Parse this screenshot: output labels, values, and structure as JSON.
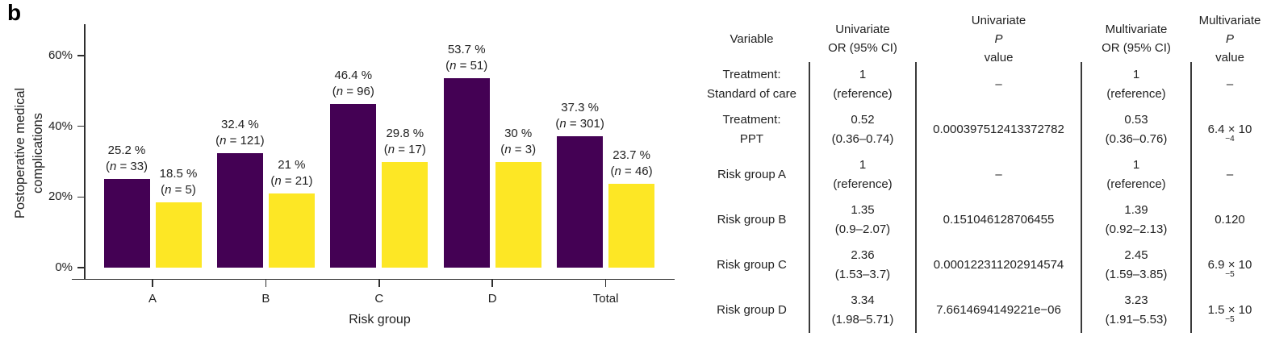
{
  "panel_label": "b",
  "colors": {
    "bar_purple": "#440154",
    "bar_yellow": "#FDE725",
    "text": "#222222",
    "axis": "#2e2e2e"
  },
  "chart_data": {
    "type": "bar",
    "title": "",
    "xlabel": "Risk group",
    "ylabel": "Postoperative medical complications",
    "ylabel_lines": [
      "Postoperative medical",
      "complications"
    ],
    "categories": [
      "A",
      "B",
      "C",
      "D",
      "Total"
    ],
    "ylim": [
      0,
      70
    ],
    "grid": "off",
    "legend": "none",
    "y_ticks": [
      {
        "value": 0,
        "label": "0%"
      },
      {
        "value": 20,
        "label": "20%"
      },
      {
        "value": 40,
        "label": "40%"
      },
      {
        "value": 60,
        "label": "60%"
      }
    ],
    "series": [
      {
        "name": "purple-series",
        "color": "#440154",
        "values": [
          25.2,
          32.4,
          46.4,
          53.7,
          37.3
        ],
        "labels": [
          [
            "25.2 %",
            "(*n* = 33)"
          ],
          [
            "32.4 %",
            "(*n* = 121)"
          ],
          [
            "46.4 %",
            "(*n* = 96)"
          ],
          [
            "53.7 %",
            "(*n* = 51)"
          ],
          [
            "37.3 %",
            "(*n* = 301)"
          ]
        ]
      },
      {
        "name": "yellow-series",
        "color": "#FDE725",
        "values": [
          18.5,
          21,
          29.8,
          30,
          23.7
        ],
        "labels": [
          [
            "18.5 %",
            "(*n* = 5)"
          ],
          [
            "21 %",
            "(*n* = 21)"
          ],
          [
            "29.8 %",
            "(*n* = 17)"
          ],
          [
            "30 %",
            "(*n* = 3)"
          ],
          [
            "23.7 %",
            "(*n* = 46)"
          ]
        ]
      }
    ]
  },
  "table": {
    "headers": [
      [
        "Variable"
      ],
      [
        "Univariate",
        "OR (95% CI)"
      ],
      [
        "Univariate",
        "*P* value"
      ],
      [
        "Multivariate",
        "OR (95% CI)"
      ],
      [
        "Multivariate",
        "*P* value"
      ]
    ],
    "rows": [
      {
        "variable": [
          "Treatment:",
          "Standard of care"
        ],
        "uni_or": [
          "1",
          "(reference)"
        ],
        "uni_p": [
          "–"
        ],
        "multi_or": [
          "1",
          "(reference)"
        ],
        "multi_p": [
          "–"
        ]
      },
      {
        "variable": [
          "Treatment:",
          "PPT"
        ],
        "uni_or": [
          "0.52",
          "(0.36–0.74)"
        ],
        "uni_p": [
          "0.000397512413372782"
        ],
        "multi_or": [
          "0.53",
          "(0.36–0.76)"
        ],
        "multi_p": [
          "6.4 × 10^−4"
        ]
      },
      {
        "variable": [
          "Risk group A"
        ],
        "uni_or": [
          "1",
          "(reference)"
        ],
        "uni_p": [
          "–"
        ],
        "multi_or": [
          "1",
          "(reference)"
        ],
        "multi_p": [
          "–"
        ]
      },
      {
        "variable": [
          "Risk group B"
        ],
        "uni_or": [
          "1.35",
          "(0.9–2.07)"
        ],
        "uni_p": [
          "0.151046128706455"
        ],
        "multi_or": [
          "1.39",
          "(0.92–2.13)"
        ],
        "multi_p": [
          "0.120"
        ]
      },
      {
        "variable": [
          "Risk group C"
        ],
        "uni_or": [
          "2.36",
          "(1.53–3.7)"
        ],
        "uni_p": [
          "0.000122311202914574"
        ],
        "multi_or": [
          "2.45",
          "(1.59–3.85)"
        ],
        "multi_p": [
          "6.9 × 10^−5"
        ]
      },
      {
        "variable": [
          "Risk group D"
        ],
        "uni_or": [
          "3.34",
          "(1.98–5.71)"
        ],
        "uni_p": [
          "7.6614694149221e−06"
        ],
        "multi_or": [
          "3.23",
          "(1.91–5.53)"
        ],
        "multi_p": [
          "1.5 × 10^−5"
        ]
      }
    ]
  }
}
